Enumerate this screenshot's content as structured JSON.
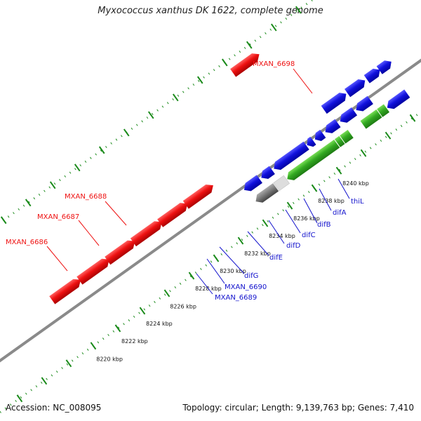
{
  "title": "Myxococcus xanthus DK 1622, complete genome",
  "footer": {
    "accession": "Accession: NC_008095",
    "summary": "Topology: circular; Length: 9,139,763 bp; Genes: 7,410"
  },
  "ticks": [
    "8220 kbp",
    "8222 kbp",
    "8224 kbp",
    "8226 kbp",
    "8228 kbp",
    "8230 kbp",
    "8232 kbp",
    "8234 kbp",
    "8236 kbp",
    "8238 kbp",
    "8240 kbp"
  ],
  "labels": {
    "red": [
      "MXAN_6698",
      "MXAN_6688",
      "MXAN_6687",
      "MXAN_6686"
    ],
    "blue": [
      "thiL",
      "difA",
      "difB",
      "difC",
      "difD",
      "difE",
      "difG",
      "MXAN_6690",
      "MXAN_6689"
    ]
  },
  "colors": {
    "backbone": "#8a8a8a",
    "tick_dots": "#1a8a1a",
    "red_feature": "#ee1111",
    "blue_feature": "#1111dd",
    "green_feature": "#33aa22",
    "cyan_feature": "#11eeee",
    "gray_feature": "#777777",
    "red_label": "#ee1111",
    "blue_label": "#1111cc"
  }
}
